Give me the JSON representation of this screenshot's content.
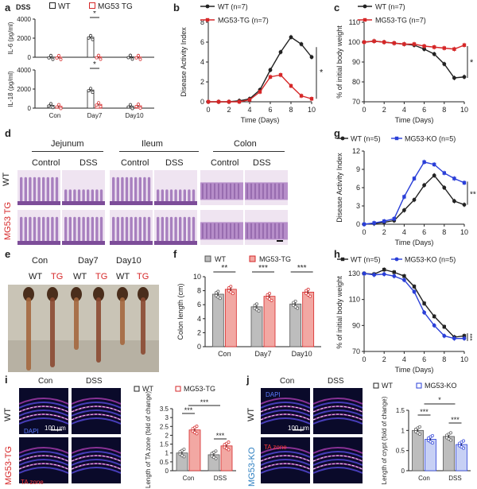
{
  "panel_letters": {
    "a": "a",
    "b": "b",
    "c": "c",
    "d": "d",
    "e": "e",
    "f": "f",
    "g": "g",
    "h": "h",
    "i": "i",
    "j": "j"
  },
  "colors": {
    "wt": "#222222",
    "tg": "#d62728",
    "ko": "#2a3fd8",
    "bar_wt": "#bdbdbd",
    "bar_tg": "#f2a8a3",
    "bar_ko": "#c7d0f5"
  },
  "panel_a": {
    "tag": "DSS",
    "legend": [
      "WT",
      "MG53 TG"
    ],
    "il6_label": "IL-6 (pg/ml)",
    "il18_label": "IL-18 (pg/ml)",
    "sig_il6": "*",
    "sig_il18": "*",
    "groups": [
      "Con",
      "Day7",
      "Day10"
    ]
  },
  "panel_b": {
    "legend": [
      "WT (n=7)",
      "MG53-TG (n=7)"
    ],
    "ylabel": "Disease Activity Index",
    "xlabel": "Time (Days)",
    "sig": "*"
  },
  "panel_c": {
    "legend": [
      "WT (n=7)",
      "MG53-TG (n=7)"
    ],
    "ylabel": "% of initial body weight",
    "xlabel": "Time (Days)",
    "sig": "*"
  },
  "panel_d": {
    "regions": [
      "Jejunum",
      "Ileum",
      "Colon"
    ],
    "conditions": [
      "Control",
      "DSS",
      "Control",
      "DSS",
      "Control",
      "DSS"
    ],
    "rows": [
      "WT",
      "MG53 TG"
    ]
  },
  "panel_e": {
    "groups": [
      "Con",
      "Day7",
      "Day10"
    ],
    "genotypes": [
      "WT",
      "TG",
      "WT",
      "TG",
      "WT",
      "TG"
    ]
  },
  "panel_f": {
    "legend": [
      "WT",
      "MG53-TG"
    ],
    "ylabel": "Colon length (cm)",
    "groups": [
      "Con",
      "Day7",
      "Day10"
    ],
    "sig": [
      "**",
      "***",
      "***"
    ]
  },
  "panel_g": {
    "legend": [
      "WT (n=5)",
      "MG53-KO (n=5)"
    ],
    "ylabel": "Disease Activity Index",
    "xlabel": "Time (Days)",
    "sig": "**"
  },
  "panel_h": {
    "legend": [
      "WT (n=5)",
      "MG53-KO (n=5)"
    ],
    "ylabel": "% of initial body weight",
    "xlabel": "Time (Days)",
    "sig": "***"
  },
  "panel_i": {
    "cols": [
      "Con",
      "DSS"
    ],
    "rows": [
      "WT",
      "MG53-TG"
    ],
    "dapi": "DAPI",
    "scale": "100 μm",
    "ta": "TA zone",
    "legend": [
      "WT",
      "MG53-TG"
    ],
    "ylabel": "Length of TA zone (fold of change)",
    "groups": [
      "Con",
      "DSS"
    ],
    "sig": [
      "***",
      "***",
      "***"
    ]
  },
  "panel_j": {
    "cols": [
      "Con",
      "DSS"
    ],
    "rows": [
      "WT",
      "MG53-KO"
    ],
    "dapi": "DAPI",
    "scale": "100 μm",
    "ta": "TA zone",
    "legend": [
      "WT",
      "MG53-KO"
    ],
    "ylabel": "Length of crypt (fold of change)",
    "groups": [
      "Con",
      "DSS"
    ],
    "sig": [
      "*",
      "***",
      "***"
    ]
  },
  "chart_data": [
    {
      "id": "a_top",
      "type": "bar",
      "title": "",
      "ylabel": "IL-6 (pg/ml)",
      "categories": [
        "Con",
        "Day7",
        "Day10"
      ],
      "ylim": [
        0,
        4000
      ],
      "yticks": [
        0,
        2000,
        4000
      ],
      "series": [
        {
          "name": "WT",
          "values": [
            20,
            2100,
            40
          ]
        },
        {
          "name": "MG53 TG",
          "values": [
            10,
            30,
            20
          ]
        }
      ]
    },
    {
      "id": "a_bottom",
      "type": "bar",
      "title": "",
      "ylabel": "IL-18 (pg/ml)",
      "categories": [
        "Con",
        "Day7",
        "Day10"
      ],
      "ylim": [
        0,
        4000
      ],
      "yticks": [
        0,
        2000,
        4000
      ],
      "series": [
        {
          "name": "WT",
          "values": [
            300,
            1900,
            200
          ]
        },
        {
          "name": "MG53 TG",
          "values": [
            200,
            400,
            250
          ]
        }
      ]
    },
    {
      "id": "b",
      "type": "line",
      "xlabel": "Time (Days)",
      "ylabel": "Disease Activity Index",
      "x": [
        0,
        1,
        2,
        3,
        4,
        5,
        6,
        7,
        8,
        9,
        10
      ],
      "xlim": [
        0,
        10
      ],
      "ylim": [
        0,
        8
      ],
      "xticks": [
        0,
        2,
        4,
        6,
        8,
        10
      ],
      "yticks": [
        0,
        2,
        4,
        6,
        8
      ],
      "series": [
        {
          "name": "WT (n=7)",
          "values": [
            0,
            0,
            0,
            0.1,
            0.3,
            1.2,
            3.2,
            5.0,
            6.5,
            5.8,
            4.5
          ]
        },
        {
          "name": "MG53-TG (n=7)",
          "values": [
            0,
            0,
            0,
            0,
            0.2,
            1.0,
            2.5,
            2.7,
            1.6,
            0.6,
            0.3
          ]
        }
      ]
    },
    {
      "id": "c",
      "type": "line",
      "xlabel": "Time (Days)",
      "ylabel": "% of initial body weight",
      "x": [
        0,
        1,
        2,
        3,
        4,
        5,
        6,
        7,
        8,
        9,
        10
      ],
      "xlim": [
        0,
        10
      ],
      "ylim": [
        70,
        110
      ],
      "xticks": [
        0,
        2,
        4,
        6,
        8,
        10
      ],
      "yticks": [
        70,
        80,
        90,
        100,
        110
      ],
      "series": [
        {
          "name": "WT (n=7)",
          "values": [
            100,
            100.5,
            100,
            99.5,
            99,
            98.5,
            96.5,
            94,
            89,
            82,
            82.5
          ]
        },
        {
          "name": "MG53-TG (n=7)",
          "values": [
            100,
            100.5,
            100,
            99.5,
            99,
            99,
            98,
            97.5,
            97,
            96.5,
            98.5
          ]
        }
      ]
    },
    {
      "id": "f",
      "type": "bar",
      "ylabel": "Colon length (cm)",
      "categories": [
        "Con",
        "Day7",
        "Day10"
      ],
      "ylim": [
        0,
        10
      ],
      "yticks": [
        0,
        2,
        4,
        6,
        8,
        10
      ],
      "series": [
        {
          "name": "WT",
          "values": [
            7.5,
            5.7,
            6.1
          ]
        },
        {
          "name": "MG53-TG",
          "values": [
            8.2,
            7.2,
            7.8
          ]
        }
      ]
    },
    {
      "id": "g",
      "type": "line",
      "xlabel": "Time (Days)",
      "ylabel": "Disease Activity Index",
      "x": [
        0,
        1,
        2,
        3,
        4,
        5,
        6,
        7,
        8,
        9,
        10
      ],
      "xlim": [
        0,
        10
      ],
      "ylim": [
        0,
        12
      ],
      "xticks": [
        0,
        2,
        4,
        6,
        8,
        10
      ],
      "yticks": [
        0,
        3,
        6,
        9,
        12
      ],
      "series": [
        {
          "name": "WT (n=5)",
          "values": [
            0,
            0.1,
            0.3,
            0.6,
            2.3,
            4.0,
            6.4,
            8.0,
            6.0,
            3.8,
            3.2
          ]
        },
        {
          "name": "MG53-KO (n=5)",
          "values": [
            0,
            0.2,
            0.5,
            0.9,
            4.5,
            7.5,
            10.2,
            9.8,
            8.4,
            7.5,
            6.8
          ]
        }
      ]
    },
    {
      "id": "h",
      "type": "line",
      "xlabel": "Time (Days)",
      "ylabel": "% of initial body weight",
      "x": [
        0,
        1,
        2,
        3,
        4,
        5,
        6,
        7,
        8,
        9,
        10
      ],
      "xlim": [
        0,
        10
      ],
      "ylim": [
        70,
        130
      ],
      "xticks": [
        0,
        2,
        4,
        6,
        8,
        10
      ],
      "yticks": [
        70,
        90,
        110,
        130
      ],
      "series": [
        {
          "name": "WT (n=5)",
          "values": [
            130,
            129.5,
            133,
            131,
            128,
            120,
            107,
            97,
            89,
            81,
            82
          ]
        },
        {
          "name": "MG53-KO (n=5)",
          "values": [
            130,
            129,
            129.5,
            128,
            125,
            116,
            100,
            90,
            82,
            80,
            80
          ]
        }
      ]
    },
    {
      "id": "i",
      "type": "bar",
      "ylabel": "Length of TA zone (fold of change)",
      "categories": [
        "Con",
        "DSS"
      ],
      "ylim": [
        0,
        3.5
      ],
      "yticks": [
        0,
        0.5,
        1.0,
        1.5,
        2.0,
        2.5,
        3.0,
        3.5
      ],
      "series": [
        {
          "name": "WT",
          "values": [
            1.0,
            0.9
          ]
        },
        {
          "name": "MG53-TG",
          "values": [
            2.3,
            1.4
          ]
        }
      ]
    },
    {
      "id": "j",
      "type": "bar",
      "ylabel": "Length of crypt (fold of change)",
      "categories": [
        "Con",
        "DSS"
      ],
      "ylim": [
        0,
        1.5
      ],
      "yticks": [
        0,
        0.5,
        1.0,
        1.5
      ],
      "series": [
        {
          "name": "WT",
          "values": [
            1.0,
            0.85
          ]
        },
        {
          "name": "MG53-KO",
          "values": [
            0.78,
            0.65
          ]
        }
      ]
    }
  ]
}
